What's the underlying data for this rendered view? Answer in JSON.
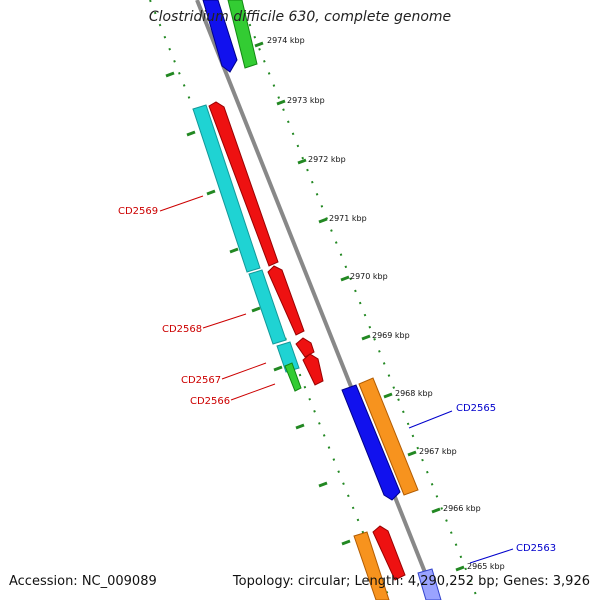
{
  "title": "Clostridium difficile 630, complete genome",
  "footer": {
    "accession": "Accession: NC_009089",
    "topology": "Topology: circular; Length: 4,290,252 bp; Genes: 3,926"
  },
  "ruler": {
    "ticks": [
      {
        "label": "2974 kbp",
        "position_kbp": 2974
      },
      {
        "label": "2973 kbp",
        "position_kbp": 2973
      },
      {
        "label": "2972 kbp",
        "position_kbp": 2972
      },
      {
        "label": "2971 kbp",
        "position_kbp": 2971
      },
      {
        "label": "2970 kbp",
        "position_kbp": 2970
      },
      {
        "label": "2969 kbp",
        "position_kbp": 2969
      },
      {
        "label": "2968 kbp",
        "position_kbp": 2968
      },
      {
        "label": "2967 kbp",
        "position_kbp": 2967
      },
      {
        "label": "2966 kbp",
        "position_kbp": 2966
      },
      {
        "label": "2965 kbp",
        "position_kbp": 2965
      }
    ]
  },
  "gene_labels": [
    {
      "id": "CD2569",
      "text": "CD2569",
      "color": "#cc0000"
    },
    {
      "id": "CD2568",
      "text": "CD2568",
      "color": "#cc0000"
    },
    {
      "id": "CD2567",
      "text": "CD2567",
      "color": "#cc0000"
    },
    {
      "id": "CD2566",
      "text": "CD2566",
      "color": "#cc0000"
    },
    {
      "id": "CD2565",
      "text": "CD2565",
      "color": "#0000cc"
    },
    {
      "id": "CD2563",
      "text": "CD2563",
      "color": "#0000cc"
    }
  ],
  "colors": {
    "backbone": "#888888",
    "ruler": "#228822",
    "cyan": "#1fd3d3",
    "red": "#ee1111",
    "blue": "#1111ee",
    "orange": "#f7931e",
    "green": "#33cc33"
  }
}
